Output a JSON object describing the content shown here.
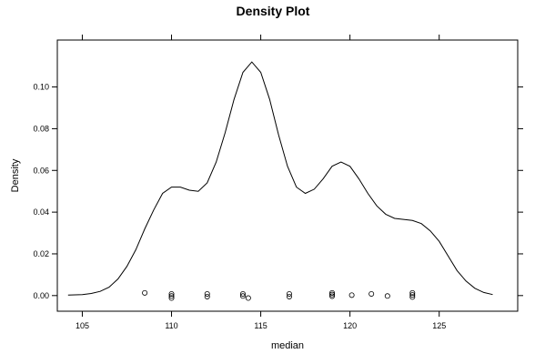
{
  "chart_data": {
    "type": "line",
    "title": "Density Plot",
    "xlabel": "median",
    "ylabel": "Density",
    "xlim": [
      103.6,
      129.4
    ],
    "ylim": [
      -0.0075,
      0.1225
    ],
    "x_ticks": [
      105,
      110,
      115,
      120,
      125
    ],
    "y_ticks": [
      0.0,
      0.02,
      0.04,
      0.06,
      0.08,
      0.1
    ],
    "x_tick_labels": [
      "105",
      "110",
      "115",
      "120",
      "125"
    ],
    "y_tick_labels": [
      "0.00",
      "0.02",
      "0.04",
      "0.06",
      "0.08",
      "0.10"
    ],
    "grid": false,
    "series": [
      {
        "x": [
          104.2,
          105.0,
          105.5,
          106.0,
          106.5,
          107.0,
          107.5,
          108.0,
          108.5,
          109.0,
          109.5,
          110.0,
          110.5,
          111.0,
          111.5,
          112.0,
          112.5,
          113.0,
          113.5,
          114.0,
          114.5,
          115.0,
          115.5,
          116.0,
          116.5,
          117.0,
          117.5,
          118.0,
          118.5,
          119.0,
          119.5,
          120.0,
          120.5,
          121.0,
          121.5,
          122.0,
          122.5,
          123.0,
          123.5,
          124.0,
          124.5,
          125.0,
          125.5,
          126.0,
          126.5,
          127.0,
          127.5,
          128.0
        ],
        "y": [
          0.0002,
          0.0005,
          0.001,
          0.002,
          0.004,
          0.008,
          0.014,
          0.022,
          0.032,
          0.041,
          0.049,
          0.052,
          0.052,
          0.0505,
          0.05,
          0.054,
          0.064,
          0.078,
          0.094,
          0.107,
          0.112,
          0.107,
          0.094,
          0.077,
          0.062,
          0.052,
          0.049,
          0.051,
          0.056,
          0.062,
          0.064,
          0.062,
          0.056,
          0.049,
          0.043,
          0.039,
          0.037,
          0.0365,
          0.036,
          0.0345,
          0.031,
          0.026,
          0.019,
          0.012,
          0.007,
          0.0035,
          0.0015,
          0.0005
        ]
      }
    ],
    "rug_points": [
      {
        "x": 108.5,
        "y": 0.0013
      },
      {
        "x": 110.0,
        "y": 0.0008
      },
      {
        "x": 110.0,
        "y": -0.0002
      },
      {
        "x": 110.0,
        "y": -0.0012
      },
      {
        "x": 112.0,
        "y": 0.0008
      },
      {
        "x": 112.0,
        "y": -0.0005
      },
      {
        "x": 114.0,
        "y": 0.0008
      },
      {
        "x": 114.0,
        "y": -0.0002
      },
      {
        "x": 114.3,
        "y": -0.0012
      },
      {
        "x": 116.6,
        "y": 0.0008
      },
      {
        "x": 116.6,
        "y": -0.0005
      },
      {
        "x": 119.0,
        "y": 0.0013
      },
      {
        "x": 119.0,
        "y": 0.0005
      },
      {
        "x": 119.0,
        "y": -0.0003
      },
      {
        "x": 120.1,
        "y": 0.0002
      },
      {
        "x": 121.2,
        "y": 0.0008
      },
      {
        "x": 122.1,
        "y": -0.0002
      },
      {
        "x": 123.5,
        "y": 0.0013
      },
      {
        "x": 123.5,
        "y": 0.0003
      },
      {
        "x": 123.5,
        "y": -0.0007
      }
    ]
  }
}
